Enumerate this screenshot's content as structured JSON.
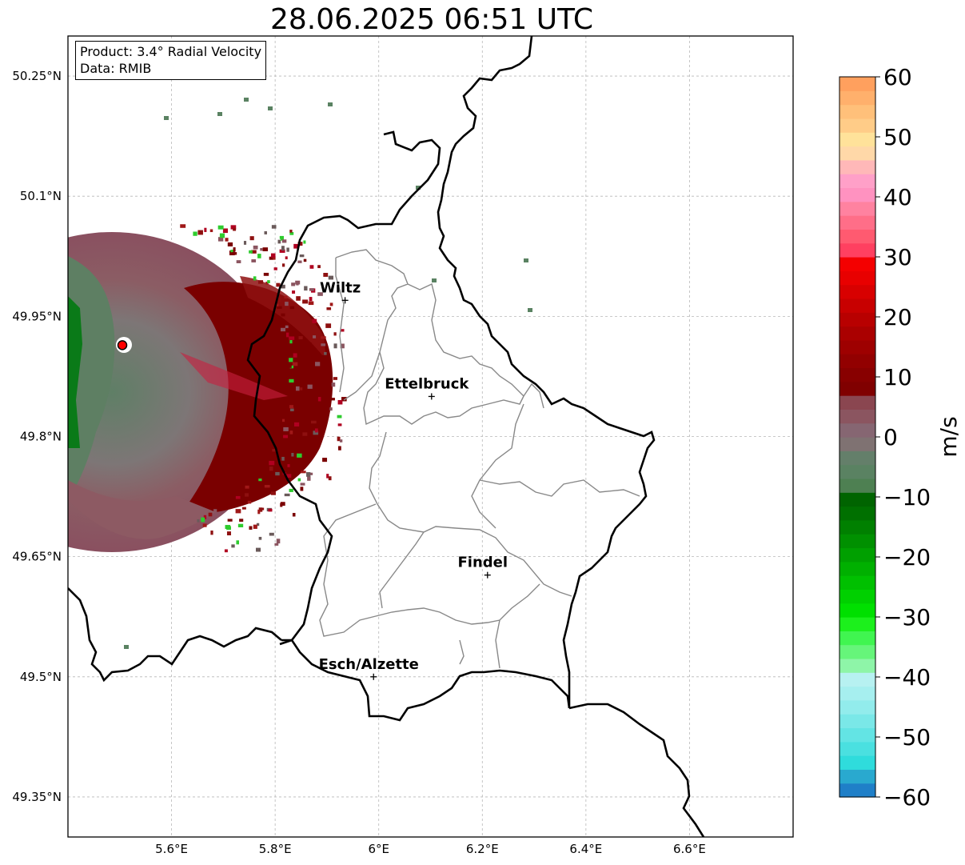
{
  "title": "28.06.2025 06:51 UTC",
  "info_box": {
    "product": "Product: 3.4° Radial Velocity",
    "data": "Data: RMIB"
  },
  "map": {
    "lon_range": [
      5.4,
      6.8
    ],
    "lat_range": [
      49.3,
      50.3
    ],
    "lat_ticks": [
      {
        "value": 50.25,
        "label": "50.25°N"
      },
      {
        "value": 50.1,
        "label": "50.1°N"
      },
      {
        "value": 49.95,
        "label": "49.95°N"
      },
      {
        "value": 49.8,
        "label": "49.8°N"
      },
      {
        "value": 49.65,
        "label": "49.65°N"
      },
      {
        "value": 49.5,
        "label": "49.5°N"
      },
      {
        "value": 49.35,
        "label": "49.35°N"
      }
    ],
    "lon_ticks": [
      {
        "value": 5.6,
        "label": "5.6°E"
      },
      {
        "value": 5.8,
        "label": "5.8°E"
      },
      {
        "value": 6.0,
        "label": "6°E"
      },
      {
        "value": 6.2,
        "label": "6.2°E"
      },
      {
        "value": 6.4,
        "label": "6.4°E"
      },
      {
        "value": 6.6,
        "label": "6.6°E"
      }
    ],
    "grid": true,
    "radar_site": {
      "lon": 5.505,
      "lat": 49.914
    },
    "cities": [
      {
        "name": "Wiltz",
        "lon": 5.935,
        "lat": 49.97
      },
      {
        "name": "Ettelbruck",
        "lon": 6.102,
        "lat": 49.85
      },
      {
        "name": "Findel",
        "lon": 6.21,
        "lat": 49.627
      },
      {
        "name": "Esch/Alzette",
        "lon": 5.99,
        "lat": 49.5
      }
    ]
  },
  "colorbar": {
    "label": "m/s",
    "min": -60,
    "max": 60,
    "ticks": [
      {
        "value": 60,
        "label": "60"
      },
      {
        "value": 50,
        "label": "50"
      },
      {
        "value": 40,
        "label": "40"
      },
      {
        "value": 30,
        "label": "30"
      },
      {
        "value": 20,
        "label": "20"
      },
      {
        "value": 10,
        "label": "10"
      },
      {
        "value": 0,
        "label": "0"
      },
      {
        "value": -10,
        "label": "−10"
      },
      {
        "value": -20,
        "label": "−20"
      },
      {
        "value": -30,
        "label": "−30"
      },
      {
        "value": -40,
        "label": "−40"
      },
      {
        "value": -50,
        "label": "−50"
      },
      {
        "value": -60,
        "label": "−60"
      }
    ],
    "colors": [
      "#1f7fc8",
      "#29a9cf",
      "#2fdcdc",
      "#4ae0e0",
      "#63e4e4",
      "#7ae8e8",
      "#92ecec",
      "#a6efef",
      "#b7f1f1",
      "#8ef5a8",
      "#66f57a",
      "#40f550",
      "#1cf01c",
      "#00e000",
      "#00d000",
      "#00c000",
      "#00b000",
      "#00a000",
      "#009000",
      "#008000",
      "#007000",
      "#006400",
      "#4e8052",
      "#5a8262",
      "#647f6a",
      "#7f7272",
      "#866672",
      "#8b5560",
      "#8a4650",
      "#800000",
      "#880000",
      "#920000",
      "#9e0000",
      "#aa0000",
      "#b80000",
      "#c80000",
      "#d80000",
      "#e80000",
      "#f40000",
      "#ff4060",
      "#ff5a70",
      "#ff6e88",
      "#ff82a0",
      "#ff92c0",
      "#ffa0c8",
      "#ffb8b8",
      "#ffd8a8",
      "#ffe29a",
      "#ffcc88",
      "#ffc07a",
      "#ffb06c",
      "#ffa05e"
    ]
  }
}
